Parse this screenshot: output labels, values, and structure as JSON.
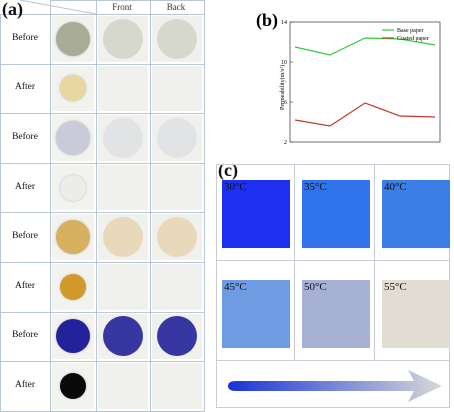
{
  "panel_a": {
    "letter": "(a)",
    "columns": [
      "",
      "Front",
      "Back"
    ],
    "rows": [
      {
        "label": "Before",
        "color": "#a8ab95"
      },
      {
        "label": "After",
        "color": "#e8d7a0"
      },
      {
        "label": "Before",
        "color": "#c9ccd8"
      },
      {
        "label": "After",
        "color": "#ececea"
      },
      {
        "label": "Before",
        "color": "#d9b060"
      },
      {
        "label": "After",
        "color": "#d19a2a"
      },
      {
        "label": "Before",
        "color": "#24229a"
      },
      {
        "label": "After",
        "color": "#0a0a0a"
      }
    ]
  },
  "panel_b": {
    "letter": "(b)",
    "chart_data": {
      "type": "line",
      "ylabel": "Permeability(m/s²)",
      "x": [
        1,
        2,
        3,
        4,
        5
      ],
      "series": [
        {
          "name": "Base paper",
          "color": "#2ecc40",
          "values": [
            11.5,
            10.7,
            12.4,
            12.3,
            11.7
          ]
        },
        {
          "name": "Coated paper",
          "color": "#c0392b",
          "values": [
            4.2,
            3.6,
            5.9,
            4.6,
            4.5
          ]
        }
      ],
      "ylim": [
        2,
        14
      ],
      "yticks": [
        "2",
        "6",
        "10",
        "14"
      ],
      "legend": "top-right"
    }
  },
  "panel_c": {
    "letter": "(c)",
    "swatches": [
      {
        "label": "30°C",
        "color": "#1f2ff0"
      },
      {
        "label": "35°C",
        "color": "#2f72ea"
      },
      {
        "label": "40°C",
        "color": "#3a7ee6"
      },
      {
        "label": "45°C",
        "color": "#6f9be3"
      },
      {
        "label": "50°C",
        "color": "#a7b1d3"
      },
      {
        "label": "55°C",
        "color": "#e2ddd2"
      }
    ],
    "gradient_from": "#1834d6",
    "gradient_to": "#d8d8d8"
  }
}
